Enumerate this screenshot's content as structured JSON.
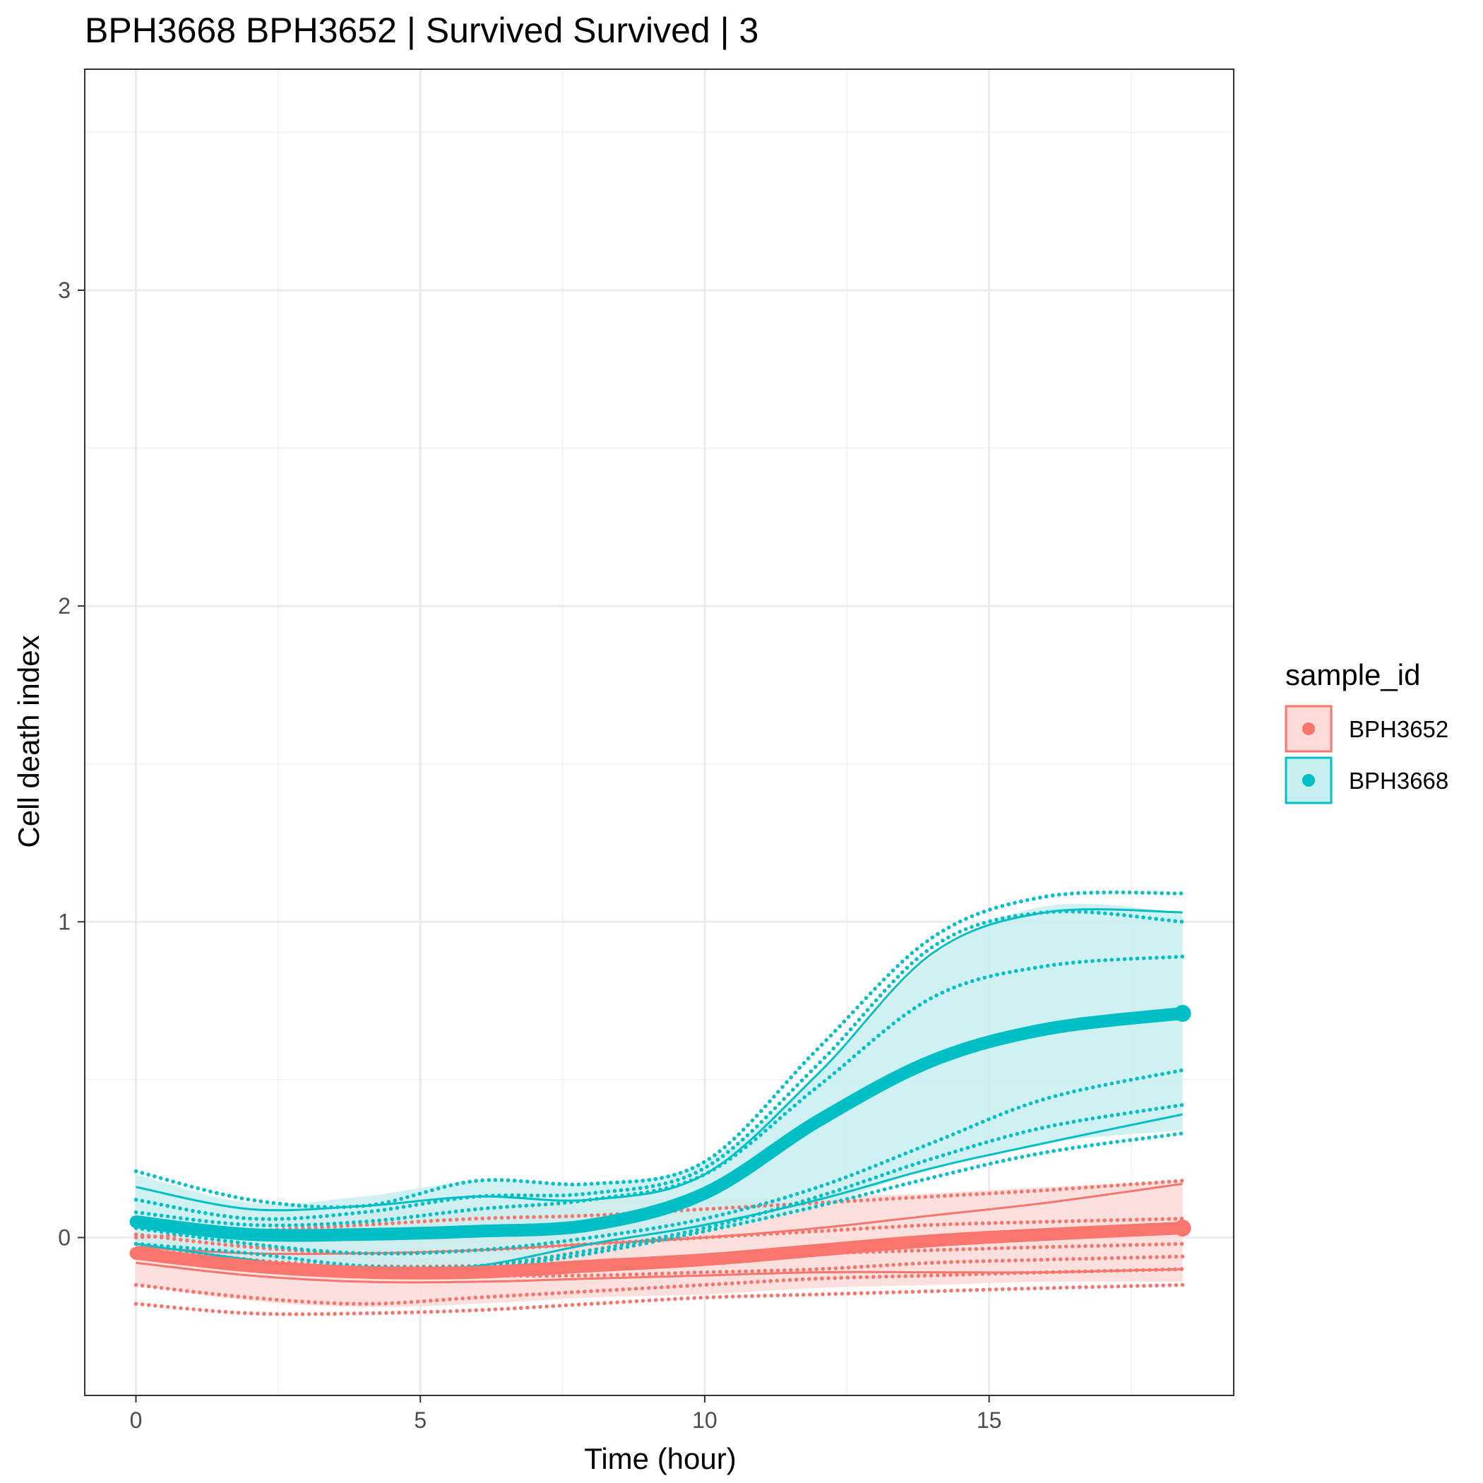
{
  "chart_data": {
    "type": "line",
    "title": "BPH3668 BPH3652 | Survived Survived | 3",
    "xlabel": "Time (hour)",
    "ylabel": "Cell death index",
    "xlim": [
      -0.9,
      19.3
    ],
    "ylim": [
      -0.5,
      3.7
    ],
    "x_ticks": [
      0,
      5,
      10,
      15
    ],
    "y_ticks": [
      0,
      1,
      2,
      3
    ],
    "grid": true,
    "legend": {
      "title": "sample_id",
      "position": "right"
    },
    "series": [
      {
        "name": "BPH3652",
        "color": "#F8766D",
        "fill": "#FADBD8",
        "x": [
          0,
          2,
          4,
          6,
          8,
          10,
          12,
          14,
          16,
          18.4
        ],
        "mean": [
          -0.05,
          -0.09,
          -0.11,
          -0.11,
          -0.09,
          -0.07,
          -0.04,
          -0.01,
          0.01,
          0.03
        ],
        "band_upper": [
          0.0,
          0.05,
          0.08,
          0.1,
          0.12,
          0.12,
          0.13,
          0.14,
          0.16,
          0.18
        ],
        "band_lower": [
          -0.15,
          -0.2,
          -0.22,
          -0.21,
          -0.19,
          -0.18,
          -0.16,
          -0.15,
          -0.14,
          -0.14
        ],
        "dotted": [
          [
            -0.21,
            -0.24,
            -0.24,
            -0.23,
            -0.21,
            -0.19,
            -0.18,
            -0.17,
            -0.16,
            -0.15
          ],
          [
            -0.15,
            -0.19,
            -0.21,
            -0.19,
            -0.17,
            -0.15,
            -0.13,
            -0.12,
            -0.11,
            -0.1
          ],
          [
            -0.06,
            -0.09,
            -0.11,
            -0.12,
            -0.12,
            -0.11,
            -0.1,
            -0.08,
            -0.07,
            -0.06
          ],
          [
            -0.02,
            -0.07,
            -0.09,
            -0.09,
            -0.08,
            -0.06,
            -0.05,
            -0.04,
            -0.03,
            -0.02
          ],
          [
            0.01,
            -0.03,
            -0.05,
            -0.04,
            -0.02,
            0.0,
            0.02,
            0.04,
            0.05,
            0.06
          ],
          [
            0.0,
            0.02,
            0.04,
            0.06,
            0.07,
            0.09,
            0.11,
            0.13,
            0.15,
            0.18
          ]
        ],
        "solid": [
          [
            -0.08,
            -0.12,
            -0.14,
            -0.14,
            -0.13,
            -0.12,
            -0.11,
            -0.11,
            -0.11,
            -0.1
          ],
          [
            -0.03,
            -0.05,
            -0.05,
            -0.04,
            -0.02,
            0.0,
            0.03,
            0.07,
            0.11,
            0.17
          ]
        ]
      },
      {
        "name": "BPH3668",
        "color": "#00BFC4",
        "fill": "#C8EFF0",
        "x": [
          0,
          2,
          4,
          6,
          8,
          10,
          12,
          14,
          16,
          18.4
        ],
        "mean": [
          0.05,
          0.01,
          0.01,
          0.02,
          0.04,
          0.14,
          0.37,
          0.56,
          0.66,
          0.71
        ],
        "band_upper": [
          0.2,
          0.11,
          0.13,
          0.18,
          0.17,
          0.24,
          0.52,
          0.89,
          1.05,
          1.03
        ],
        "band_lower": [
          -0.02,
          -0.07,
          -0.11,
          -0.09,
          -0.02,
          0.02,
          0.1,
          0.22,
          0.3,
          0.34
        ],
        "dotted": [
          [
            0.21,
            0.12,
            0.1,
            0.18,
            0.17,
            0.24,
            0.6,
            0.95,
            1.08,
            1.09
          ],
          [
            0.12,
            0.06,
            0.08,
            0.13,
            0.14,
            0.22,
            0.55,
            0.92,
            1.03,
            1.0
          ],
          [
            0.08,
            0.04,
            0.05,
            0.09,
            0.12,
            0.2,
            0.48,
            0.76,
            0.86,
            0.89
          ],
          [
            0.03,
            -0.02,
            -0.05,
            -0.04,
            0.0,
            0.06,
            0.16,
            0.3,
            0.44,
            0.53
          ],
          [
            -0.02,
            -0.05,
            -0.09,
            -0.09,
            -0.04,
            0.03,
            0.13,
            0.25,
            0.35,
            0.42
          ],
          [
            -0.04,
            -0.08,
            -0.12,
            -0.1,
            -0.05,
            0.02,
            0.1,
            0.19,
            0.27,
            0.33
          ]
        ],
        "solid": [
          [
            0.16,
            0.09,
            0.1,
            0.13,
            0.12,
            0.2,
            0.52,
            0.9,
            1.03,
            1.03
          ],
          [
            -0.02,
            -0.07,
            -0.11,
            -0.09,
            -0.02,
            0.04,
            0.12,
            0.22,
            0.3,
            0.39
          ]
        ]
      }
    ]
  }
}
